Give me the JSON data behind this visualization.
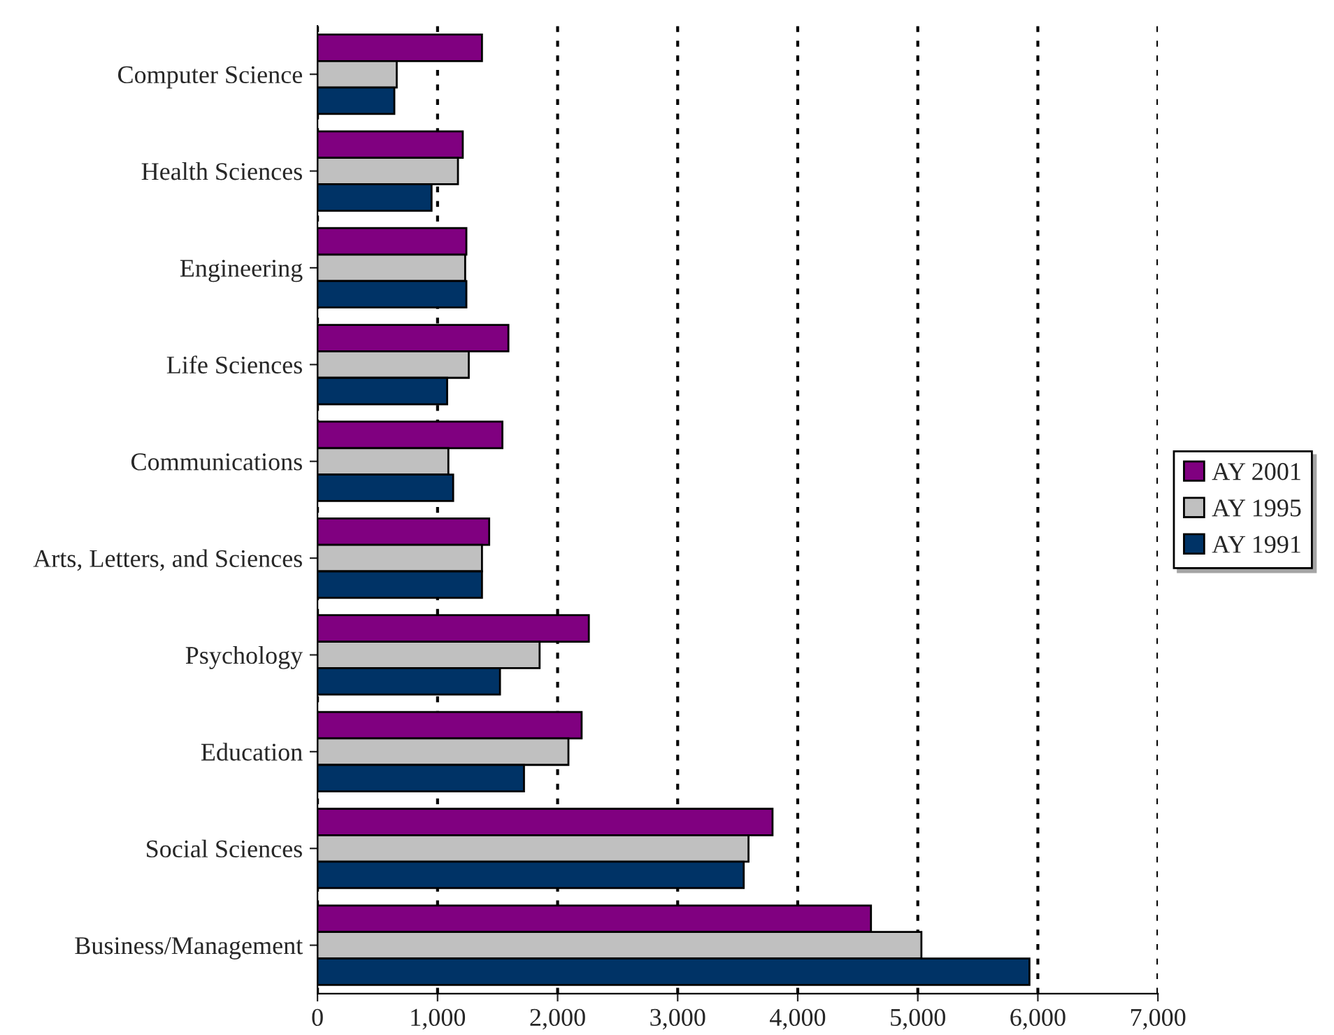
{
  "chart_data": {
    "type": "bar",
    "orientation": "horizontal",
    "categories": [
      "Computer Science",
      "Health Sciences",
      "Engineering",
      "Life Sciences",
      "Communications",
      "Arts, Letters, and Sciences",
      "Psychology",
      "Education",
      "Social Sciences",
      "Business/Management"
    ],
    "series": [
      {
        "name": "AY 2001",
        "color": "#800080",
        "values": [
          1370,
          1210,
          1240,
          1590,
          1540,
          1430,
          2260,
          2200,
          3790,
          4610
        ]
      },
      {
        "name": "AY 1995",
        "color": "#c0c0c0",
        "values": [
          660,
          1170,
          1230,
          1260,
          1090,
          1370,
          1850,
          2090,
          3590,
          5030
        ]
      },
      {
        "name": "AY 1991",
        "color": "#003366",
        "values": [
          640,
          950,
          1240,
          1080,
          1130,
          1370,
          1520,
          1720,
          3550,
          5930
        ]
      }
    ],
    "xlim": [
      0,
      7000
    ],
    "xticks": [
      {
        "value": 0,
        "label": "0"
      },
      {
        "value": 1000,
        "label": "1,000"
      },
      {
        "value": 2000,
        "label": "2,000"
      },
      {
        "value": 3000,
        "label": "3,000"
      },
      {
        "value": 4000,
        "label": "4,000"
      },
      {
        "value": 5000,
        "label": "5,000"
      },
      {
        "value": 6000,
        "label": "6,000"
      },
      {
        "value": 7000,
        "label": "7,000"
      }
    ],
    "grid": "x",
    "legend": "right"
  }
}
